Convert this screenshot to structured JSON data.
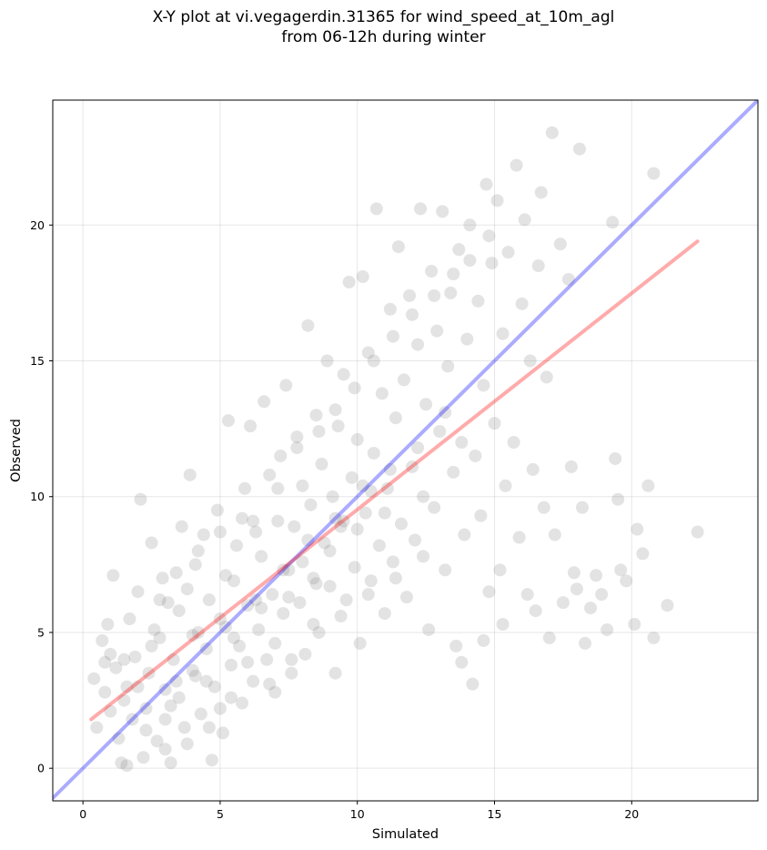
{
  "chart_data": {
    "type": "scatter",
    "title": [
      "X-Y plot at vi.vegagerdin.31365 for wind_speed_at_10m_agl",
      "from 06-12h during winter"
    ],
    "xlabel": "Simulated",
    "ylabel": "Observed",
    "xlim": [
      -1.1,
      24.6
    ],
    "ylim": [
      -1.2,
      24.6
    ],
    "xticks": [
      0,
      5,
      10,
      15,
      20
    ],
    "yticks": [
      0,
      5,
      10,
      15,
      20
    ],
    "grid": true,
    "point_style": {
      "color": "#808080",
      "alpha": 0.22
    },
    "lines": [
      {
        "kind": "identity",
        "color": "#0000ff",
        "alpha": 0.33,
        "x": [
          -1.1,
          24.6
        ],
        "y": [
          -1.1,
          24.6
        ]
      },
      {
        "kind": "fit",
        "color": "#ff0000",
        "alpha": 0.33,
        "x": [
          0.3,
          22.4
        ],
        "y": [
          1.8,
          19.4
        ]
      }
    ],
    "points": [
      [
        0.4,
        3.3
      ],
      [
        0.5,
        1.5
      ],
      [
        0.7,
        4.7
      ],
      [
        0.8,
        3.9
      ],
      [
        0.9,
        5.3
      ],
      [
        1.0,
        4.2
      ],
      [
        1.1,
        7.1
      ],
      [
        1.0,
        2.1
      ],
      [
        0.8,
        2.8
      ],
      [
        1.2,
        3.7
      ],
      [
        1.3,
        1.1
      ],
      [
        1.4,
        0.2
      ],
      [
        1.5,
        2.5
      ],
      [
        1.6,
        3.0
      ],
      [
        1.6,
        0.1
      ],
      [
        1.7,
        5.5
      ],
      [
        1.8,
        1.8
      ],
      [
        1.9,
        4.1
      ],
      [
        2.0,
        6.5
      ],
      [
        2.1,
        9.9
      ],
      [
        2.2,
        0.4
      ],
      [
        2.3,
        2.2
      ],
      [
        2.4,
        3.5
      ],
      [
        2.5,
        8.3
      ],
      [
        2.6,
        5.1
      ],
      [
        2.7,
        1.0
      ],
      [
        2.8,
        4.8
      ],
      [
        2.9,
        7.0
      ],
      [
        3.0,
        0.7
      ],
      [
        3.0,
        2.9
      ],
      [
        3.1,
        6.1
      ],
      [
        3.2,
        0.2
      ],
      [
        3.3,
        4.0
      ],
      [
        3.4,
        3.2
      ],
      [
        3.5,
        5.8
      ],
      [
        3.6,
        8.9
      ],
      [
        3.7,
        1.5
      ],
      [
        3.8,
        6.6
      ],
      [
        3.9,
        10.8
      ],
      [
        4.0,
        3.6
      ],
      [
        4.1,
        7.5
      ],
      [
        4.2,
        5.0
      ],
      [
        4.3,
        2.0
      ],
      [
        4.4,
        8.6
      ],
      [
        4.5,
        4.4
      ],
      [
        4.6,
        6.2
      ],
      [
        4.7,
        0.3
      ],
      [
        4.8,
        3.0
      ],
      [
        4.9,
        9.5
      ],
      [
        5.0,
        5.5
      ],
      [
        5.1,
        1.3
      ],
      [
        5.2,
        7.1
      ],
      [
        5.3,
        12.8
      ],
      [
        5.4,
        3.8
      ],
      [
        5.5,
        6.9
      ],
      [
        5.6,
        8.2
      ],
      [
        5.7,
        4.5
      ],
      [
        5.8,
        2.4
      ],
      [
        5.9,
        10.3
      ],
      [
        6.0,
        6.0
      ],
      [
        6.1,
        12.6
      ],
      [
        6.2,
        3.2
      ],
      [
        6.3,
        8.7
      ],
      [
        6.4,
        5.1
      ],
      [
        6.5,
        7.8
      ],
      [
        6.6,
        13.5
      ],
      [
        6.7,
        4.0
      ],
      [
        6.8,
        10.8
      ],
      [
        6.9,
        6.4
      ],
      [
        7.0,
        2.8
      ],
      [
        7.1,
        9.1
      ],
      [
        7.2,
        11.5
      ],
      [
        7.3,
        5.7
      ],
      [
        7.4,
        14.1
      ],
      [
        7.5,
        7.3
      ],
      [
        7.6,
        3.5
      ],
      [
        7.7,
        8.9
      ],
      [
        7.8,
        12.2
      ],
      [
        7.9,
        6.1
      ],
      [
        8.0,
        10.4
      ],
      [
        8.1,
        4.2
      ],
      [
        8.2,
        16.3
      ],
      [
        8.3,
        9.7
      ],
      [
        8.4,
        7.0
      ],
      [
        8.5,
        13.0
      ],
      [
        8.6,
        5.0
      ],
      [
        8.7,
        11.2
      ],
      [
        8.8,
        8.3
      ],
      [
        8.9,
        15.0
      ],
      [
        9.0,
        6.7
      ],
      [
        9.1,
        10.0
      ],
      [
        9.2,
        3.5
      ],
      [
        9.3,
        12.6
      ],
      [
        9.4,
        8.9
      ],
      [
        9.5,
        14.5
      ],
      [
        9.6,
        6.2
      ],
      [
        9.7,
        17.9
      ],
      [
        9.8,
        10.7
      ],
      [
        9.9,
        7.4
      ],
      [
        10.0,
        12.1
      ],
      [
        10.1,
        4.6
      ],
      [
        10.2,
        18.1
      ],
      [
        10.3,
        9.4
      ],
      [
        10.4,
        15.3
      ],
      [
        10.5,
        6.9
      ],
      [
        10.6,
        11.6
      ],
      [
        10.7,
        20.6
      ],
      [
        10.8,
        8.2
      ],
      [
        10.9,
        13.8
      ],
      [
        11.0,
        5.7
      ],
      [
        11.1,
        10.3
      ],
      [
        11.2,
        16.9
      ],
      [
        11.3,
        7.6
      ],
      [
        11.4,
        12.9
      ],
      [
        11.5,
        19.2
      ],
      [
        11.6,
        9.0
      ],
      [
        11.7,
        14.3
      ],
      [
        11.8,
        6.3
      ],
      [
        11.9,
        17.4
      ],
      [
        12.0,
        11.1
      ],
      [
        12.1,
        8.4
      ],
      [
        12.2,
        15.6
      ],
      [
        12.3,
        20.6
      ],
      [
        12.4,
        10.0
      ],
      [
        12.5,
        13.4
      ],
      [
        12.6,
        5.1
      ],
      [
        12.7,
        18.3
      ],
      [
        12.8,
        9.6
      ],
      [
        12.9,
        16.1
      ],
      [
        13.0,
        12.4
      ],
      [
        13.1,
        20.5
      ],
      [
        13.2,
        7.3
      ],
      [
        13.3,
        14.8
      ],
      [
        13.4,
        17.5
      ],
      [
        13.5,
        10.9
      ],
      [
        13.6,
        4.5
      ],
      [
        13.7,
        19.1
      ],
      [
        13.8,
        12.0
      ],
      [
        13.9,
        8.6
      ],
      [
        14.0,
        15.8
      ],
      [
        14.1,
        20.0
      ],
      [
        14.2,
        3.1
      ],
      [
        14.3,
        11.5
      ],
      [
        14.4,
        17.2
      ],
      [
        14.5,
        9.3
      ],
      [
        14.6,
        14.1
      ],
      [
        14.7,
        21.5
      ],
      [
        14.8,
        6.5
      ],
      [
        14.9,
        18.6
      ],
      [
        15.0,
        12.7
      ],
      [
        15.1,
        20.9
      ],
      [
        15.2,
        7.3
      ],
      [
        15.3,
        16.0
      ],
      [
        15.4,
        10.4
      ],
      [
        15.5,
        19.0
      ],
      [
        15.7,
        12.0
      ],
      [
        15.8,
        22.2
      ],
      [
        15.9,
        8.5
      ],
      [
        16.0,
        17.1
      ],
      [
        16.1,
        20.2
      ],
      [
        16.2,
        6.4
      ],
      [
        16.3,
        15.0
      ],
      [
        16.4,
        11.0
      ],
      [
        16.6,
        18.5
      ],
      [
        16.7,
        21.2
      ],
      [
        16.8,
        9.6
      ],
      [
        16.9,
        14.4
      ],
      [
        17.1,
        23.4
      ],
      [
        17.2,
        8.6
      ],
      [
        17.4,
        19.3
      ],
      [
        17.5,
        6.1
      ],
      [
        17.7,
        18.0
      ],
      [
        17.8,
        11.1
      ],
      [
        17.9,
        7.2
      ],
      [
        18.1,
        22.8
      ],
      [
        18.2,
        9.6
      ],
      [
        18.3,
        4.6
      ],
      [
        18.5,
        5.9
      ],
      [
        18.7,
        7.1
      ],
      [
        18.9,
        6.4
      ],
      [
        19.1,
        5.1
      ],
      [
        19.3,
        20.1
      ],
      [
        19.4,
        11.4
      ],
      [
        19.6,
        7.3
      ],
      [
        19.8,
        6.9
      ],
      [
        20.1,
        5.3
      ],
      [
        20.2,
        8.8
      ],
      [
        20.4,
        7.9
      ],
      [
        20.6,
        10.4
      ],
      [
        20.8,
        21.9
      ],
      [
        21.3,
        6.0
      ],
      [
        22.4,
        8.7
      ],
      [
        20.8,
        4.8
      ],
      [
        19.5,
        9.9
      ],
      [
        18.0,
        6.6
      ],
      [
        17.0,
        4.8
      ],
      [
        16.5,
        5.8
      ],
      [
        15.3,
        5.3
      ],
      [
        14.6,
        4.7
      ],
      [
        13.8,
        3.9
      ],
      [
        1.5,
        4.0
      ],
      [
        2.0,
        3.0
      ],
      [
        2.5,
        4.5
      ],
      [
        3.0,
        1.8
      ],
      [
        3.5,
        2.6
      ],
      [
        4.0,
        4.9
      ],
      [
        4.5,
        3.2
      ],
      [
        5.0,
        2.2
      ],
      [
        5.5,
        4.8
      ],
      [
        6.0,
        3.9
      ],
      [
        6.5,
        5.9
      ],
      [
        7.0,
        4.6
      ],
      [
        7.5,
        6.3
      ],
      [
        8.0,
        7.6
      ],
      [
        8.5,
        6.8
      ],
      [
        9.0,
        8.0
      ],
      [
        9.5,
        9.1
      ],
      [
        10.0,
        8.8
      ],
      [
        10.5,
        10.2
      ],
      [
        11.0,
        9.4
      ],
      [
        2.3,
        1.4
      ],
      [
        3.2,
        2.3
      ],
      [
        4.1,
        3.4
      ],
      [
        5.2,
        5.2
      ],
      [
        6.3,
        6.2
      ],
      [
        7.3,
        7.3
      ],
      [
        8.2,
        8.4
      ],
      [
        9.2,
        9.2
      ],
      [
        10.2,
        10.4
      ],
      [
        11.2,
        11.0
      ],
      [
        12.2,
        11.8
      ],
      [
        13.2,
        13.1
      ],
      [
        3.8,
        0.9
      ],
      [
        4.6,
        1.5
      ],
      [
        5.4,
        2.6
      ],
      [
        6.8,
        3.1
      ],
      [
        7.6,
        4.0
      ],
      [
        8.4,
        5.3
      ],
      [
        9.4,
        5.6
      ],
      [
        10.4,
        6.4
      ],
      [
        11.4,
        7.0
      ],
      [
        12.4,
        7.8
      ],
      [
        6.2,
        9.1
      ],
      [
        7.1,
        10.3
      ],
      [
        7.8,
        11.8
      ],
      [
        8.6,
        12.4
      ],
      [
        9.2,
        13.2
      ],
      [
        9.9,
        14.0
      ],
      [
        10.6,
        15.0
      ],
      [
        11.3,
        15.9
      ],
      [
        12.0,
        16.7
      ],
      [
        12.8,
        17.4
      ],
      [
        13.5,
        18.2
      ],
      [
        14.1,
        18.7
      ],
      [
        14.8,
        19.6
      ],
      [
        2.8,
        6.2
      ],
      [
        3.4,
        7.2
      ],
      [
        4.2,
        8.0
      ],
      [
        5.0,
        8.7
      ],
      [
        5.8,
        9.2
      ]
    ]
  }
}
